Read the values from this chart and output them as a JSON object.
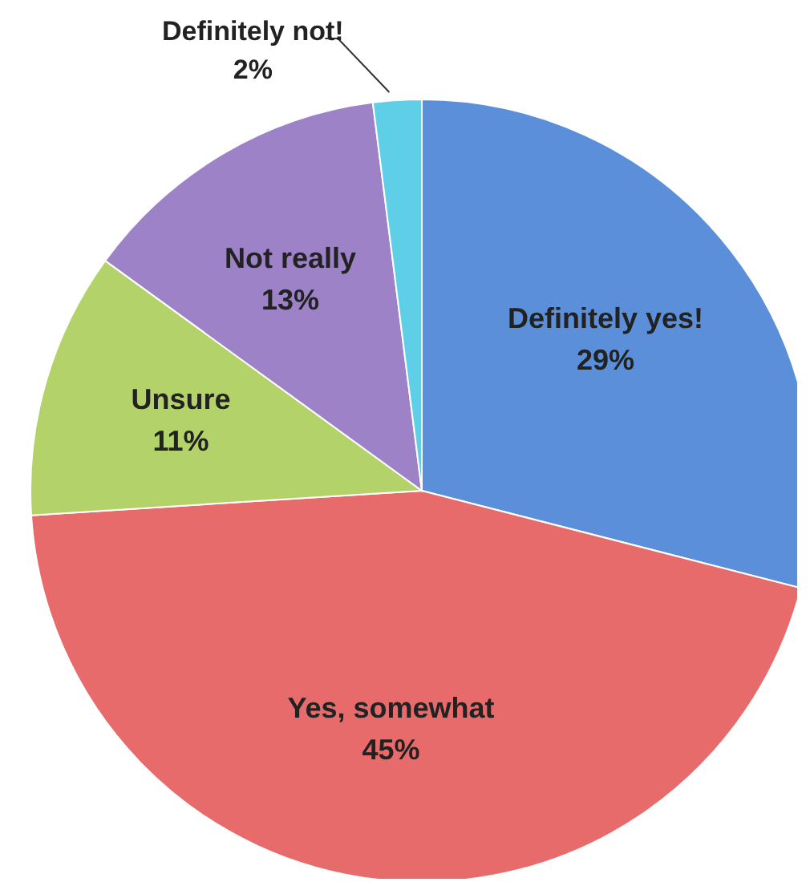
{
  "chart_data": {
    "type": "pie",
    "categories": [
      "Definitely yes!",
      "Yes, somewhat",
      "Unsure",
      "Not really",
      "Definitely not!"
    ],
    "values": [
      29,
      45,
      11,
      13,
      2
    ],
    "colors": [
      "#5b8fd9",
      "#e86b6b",
      "#b3d36a",
      "#9d82c8",
      "#5fcfe8"
    ],
    "value_labels": [
      "29%",
      "45%",
      "11%",
      "13%",
      "2%"
    ]
  }
}
